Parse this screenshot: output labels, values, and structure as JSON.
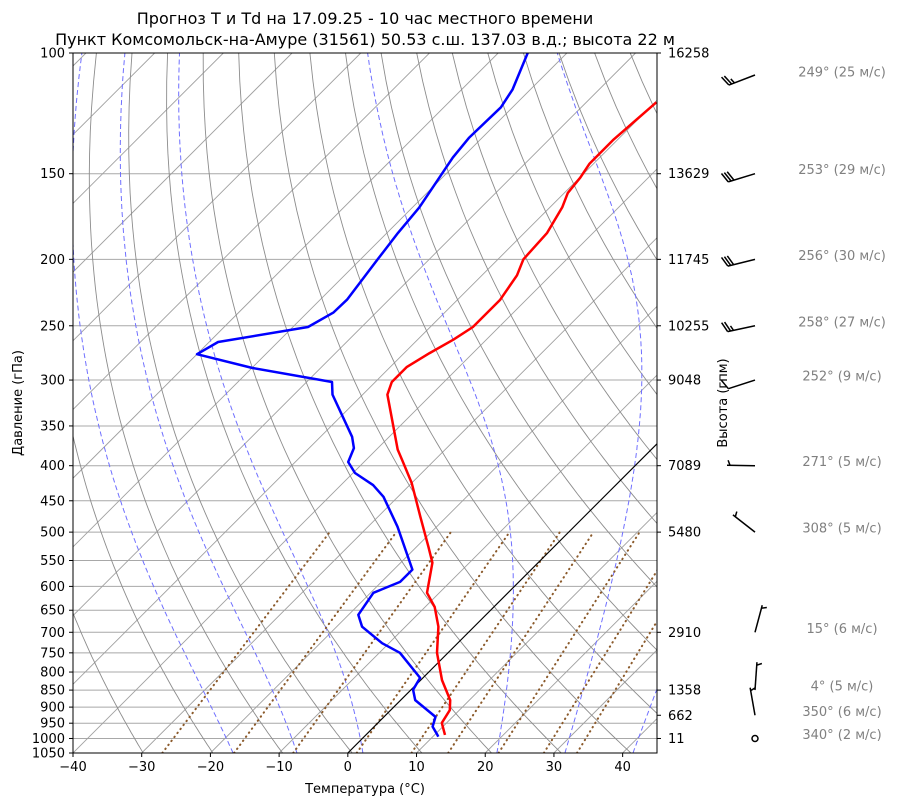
{
  "chart_data": {
    "type": "line",
    "subtype": "skew-t log-p",
    "title_line1": "Прогноз T и Td на 17.09.25 - 10 час местного времени",
    "title_line2": "Пункт Комсомольск-на-Амуре (31561) 50.53 с.ш. 137.03 в.д.; высота 22 м",
    "xlabel": "Температура (°C)",
    "ylabel": "Давление (гПа)",
    "y2label": "Высота (гпм)",
    "xlim": [
      -40,
      45
    ],
    "ylim": [
      1050,
      100
    ],
    "skew_degrees": 45,
    "x_ticks": [
      -40,
      -30,
      -20,
      -10,
      0,
      10,
      20,
      30,
      40
    ],
    "y_ticks": [
      100,
      150,
      200,
      250,
      300,
      350,
      400,
      450,
      500,
      550,
      600,
      650,
      700,
      750,
      800,
      850,
      900,
      950,
      1000,
      1050
    ],
    "height_labels": [
      {
        "p": 100,
        "label": "16258"
      },
      {
        "p": 150,
        "label": "13629"
      },
      {
        "p": 200,
        "label": "11745"
      },
      {
        "p": 250,
        "label": "10255"
      },
      {
        "p": 300,
        "label": "9048"
      },
      {
        "p": 400,
        "label": "7089"
      },
      {
        "p": 500,
        "label": "5480"
      },
      {
        "p": 700,
        "label": "2910"
      },
      {
        "p": 850,
        "label": "1358"
      },
      {
        "p": 925,
        "label": "662"
      },
      {
        "p": 1000,
        "label": "11"
      }
    ],
    "series": [
      {
        "name": "T",
        "color": "#ff0000",
        "p": [
          988,
          949,
          909,
          879,
          822,
          750,
          687,
          643,
          613,
          554,
          525,
          475,
          424,
          392,
          379,
          315,
          302,
          287,
          274,
          262,
          251,
          229,
          211,
          200,
          183,
          168,
          160,
          152,
          145,
          134,
          118
        ],
        "t": [
          11.5,
          9.3,
          8.6,
          7.2,
          3.1,
          -1.6,
          -5.2,
          -8.6,
          -11.8,
          -15.4,
          -18.3,
          -23.8,
          -30.0,
          -34.8,
          -36.9,
          -46.4,
          -47.6,
          -47.6,
          -46.3,
          -44.8,
          -43.8,
          -43.8,
          -44.9,
          -46.3,
          -46.7,
          -48.2,
          -49.5,
          -49.9,
          -50.6,
          -50.6,
          -49.8
        ]
      },
      {
        "name": "Td",
        "color": "#0000ff",
        "p": [
          994,
          988,
          961,
          930,
          879,
          849,
          816,
          750,
          726,
          687,
          660,
          613,
          591,
          567,
          491,
          444,
          427,
          410,
          395,
          377,
          363,
          315,
          302,
          288,
          275,
          264,
          251,
          239,
          229,
          200,
          183,
          168,
          142,
          133,
          120,
          113,
          100
        ],
        "t": [
          10.8,
          10.4,
          8.5,
          7.5,
          2.1,
          0.3,
          -0.4,
          -7.0,
          -11.0,
          -16.3,
          -18.6,
          -19.6,
          -17.3,
          -17.3,
          -25.7,
          -32.1,
          -35.3,
          -39.7,
          -42.3,
          -43.5,
          -45.4,
          -54.4,
          -56.3,
          -70.0,
          -80.0,
          -78.7,
          -67.8,
          -66.2,
          -66.1,
          -67.5,
          -68.4,
          -69.0,
          -71.4,
          -71.9,
          -71.7,
          -72.6,
          -75.7
        ]
      }
    ],
    "winds": [
      {
        "p": 100,
        "dir": 249,
        "speed": 25,
        "label": "249° (25 м/с)"
      },
      {
        "p": 150,
        "dir": 253,
        "speed": 29,
        "label": "253° (29 м/с)"
      },
      {
        "p": 200,
        "dir": 256,
        "speed": 30,
        "label": "256° (30 м/с)"
      },
      {
        "p": 250,
        "dir": 258,
        "speed": 27,
        "label": "258° (27 м/с)"
      },
      {
        "p": 300,
        "dir": 252,
        "speed": 9,
        "label": "252° (9 м/с)"
      },
      {
        "p": 400,
        "dir": 271,
        "speed": 5,
        "label": "271° (5 м/с)"
      },
      {
        "p": 500,
        "dir": 308,
        "speed": 5,
        "label": "308° (5 м/с)"
      },
      {
        "p": 700,
        "dir": 15,
        "speed": 6,
        "label": "15° (6 м/с)"
      },
      {
        "p": 850,
        "dir": 4,
        "speed": 5,
        "label": "4° (5 м/с)"
      },
      {
        "p": 925,
        "dir": 350,
        "speed": 6,
        "label": "350° (6 м/с)"
      },
      {
        "p": 1000,
        "dir": 340,
        "speed": 2,
        "label": "340° (2 м/с)"
      }
    ],
    "background": {
      "isotherm_color": "#a0a0a0",
      "dry_adiabat_color": "#8c8c8c",
      "moist_adiabat_color": "#6f6fff",
      "mixing_ratio_color": "#8b5a2b",
      "moist_adiabat_start_t_1050": [
        -16.7,
        -7.4,
        2.2,
        21.7,
        31.6,
        41.5
      ],
      "mixing_ratios": [
        0.0004,
        0.001,
        0.002,
        0.004,
        0.007,
        0.01,
        0.016,
        0.024,
        0.032
      ],
      "special_isotherm_t": 0,
      "special_isotherm_color": "#000000"
    }
  }
}
